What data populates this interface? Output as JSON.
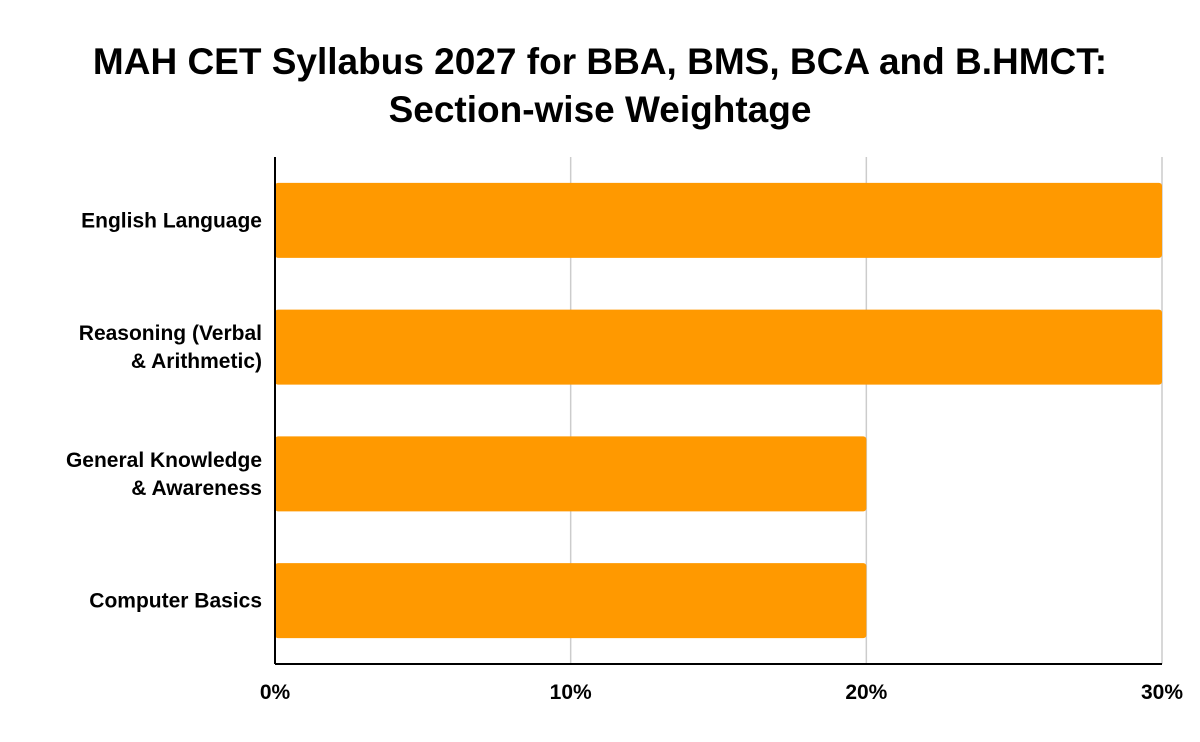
{
  "chart_data": {
    "type": "bar",
    "orientation": "horizontal",
    "title_lines": [
      "MAH CET Syllabus 2027 for BBA, BMS, BCA and B.HMCT:",
      "Section-wise Weightage"
    ],
    "categories": [
      [
        "English Language"
      ],
      [
        "Reasoning (Verbal",
        "& Arithmetic)"
      ],
      [
        "General Knowledge",
        "& Awareness"
      ],
      [
        "Computer Basics"
      ]
    ],
    "values": [
      30,
      30,
      20,
      20
    ],
    "xlim": [
      0,
      30
    ],
    "x_ticks": [
      0,
      10,
      20,
      30
    ],
    "x_tick_labels": [
      "0%",
      "10%",
      "20%",
      "30%"
    ],
    "grid": "vertical",
    "legend": "none",
    "bar_color": "#FF9900",
    "grid_color": "#cccccc",
    "axis_color": "#000000"
  }
}
